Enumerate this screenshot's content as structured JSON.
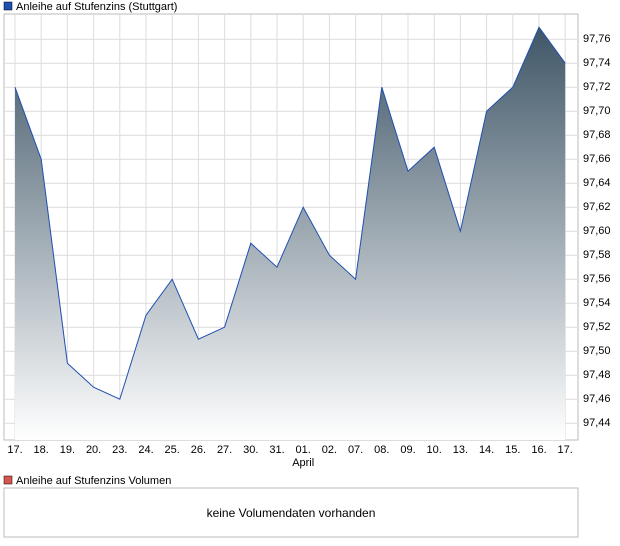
{
  "chart_data": {
    "type": "area",
    "categories": [
      "17.",
      "18.",
      "19.",
      "20.",
      "23.",
      "24.",
      "25.",
      "26.",
      "27.",
      "30.",
      "31.",
      "01.",
      "02.",
      "07.",
      "08.",
      "09.",
      "10.",
      "13.",
      "14.",
      "15.",
      "16.",
      "17."
    ],
    "x_annotation": "April",
    "series": [
      {
        "name": "Anleihe auf Stufenzins (Stuttgart)",
        "color": "#1f4fb0",
        "values": [
          97.72,
          97.66,
          97.49,
          97.47,
          97.46,
          97.53,
          97.56,
          97.51,
          97.52,
          97.59,
          97.57,
          97.62,
          97.58,
          97.56,
          97.72,
          97.65,
          97.67,
          97.6,
          97.7,
          97.72,
          97.77,
          97.74
        ]
      }
    ],
    "ylim": [
      97.426,
      97.781
    ],
    "yticks": [
      {
        "value": 97.44,
        "label": "97,44"
      },
      {
        "value": 97.46,
        "label": "97,46"
      },
      {
        "value": 97.48,
        "label": "97,48"
      },
      {
        "value": 97.5,
        "label": "97,50"
      },
      {
        "value": 97.52,
        "label": "97,52"
      },
      {
        "value": 97.54,
        "label": "97,54"
      },
      {
        "value": 97.56,
        "label": "97,56"
      },
      {
        "value": 97.58,
        "label": "97,58"
      },
      {
        "value": 97.6,
        "label": "97,60"
      },
      {
        "value": 97.62,
        "label": "97,62"
      },
      {
        "value": 97.64,
        "label": "97,64"
      },
      {
        "value": 97.66,
        "label": "97,66"
      },
      {
        "value": 97.68,
        "label": "97,68"
      },
      {
        "value": 97.7,
        "label": "97,70"
      },
      {
        "value": 97.72,
        "label": "97,72"
      },
      {
        "value": 97.74,
        "label": "97,74"
      },
      {
        "value": 97.76,
        "label": "97,76"
      }
    ],
    "grid": true
  },
  "volume_panel": {
    "legend": "Anleihe auf Stufenzins Volumen",
    "legend_color": "#d9534f",
    "message": "keine Volumendaten vorhanden"
  }
}
